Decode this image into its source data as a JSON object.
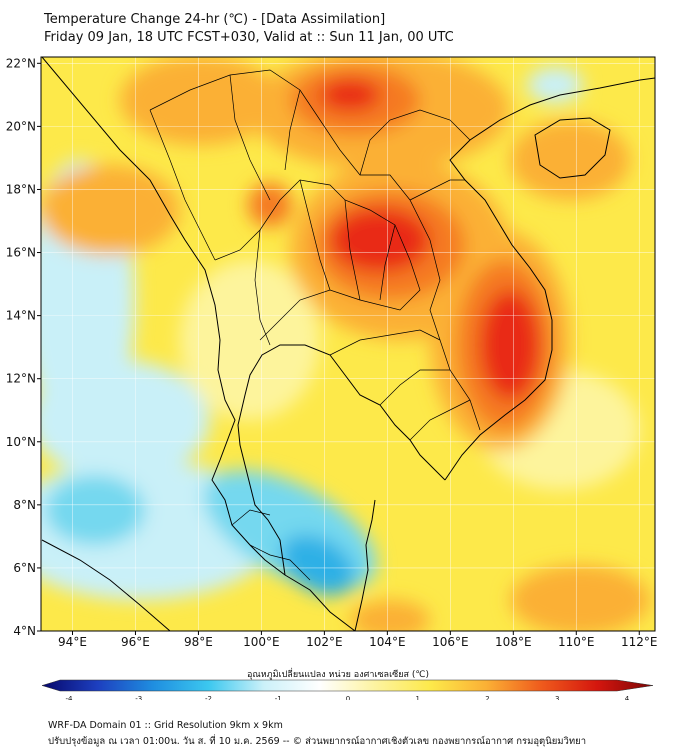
{
  "title": {
    "line1": "Temperature Change 24-hr (℃) - [Data Assimilation]",
    "line2": "Friday 09 Jan, 18 UTC FCST+030, Valid at :: Sun 11 Jan, 00 UTC"
  },
  "map": {
    "lon_range": [
      93,
      112.5
    ],
    "lat_range": [
      4,
      22.2
    ],
    "lon_ticks": [
      {
        "value": 94,
        "label": "94°E"
      },
      {
        "value": 96,
        "label": "96°E"
      },
      {
        "value": 98,
        "label": "98°E"
      },
      {
        "value": 100,
        "label": "100°E"
      },
      {
        "value": 102,
        "label": "102°E"
      },
      {
        "value": 104,
        "label": "104°E"
      },
      {
        "value": 106,
        "label": "106°E"
      },
      {
        "value": 108,
        "label": "108°E"
      },
      {
        "value": 110,
        "label": "110°E"
      },
      {
        "value": 112,
        "label": "112°E"
      }
    ],
    "lat_ticks": [
      {
        "value": 22,
        "label": "22°N"
      },
      {
        "value": 20,
        "label": "20°N"
      },
      {
        "value": 18,
        "label": "18°N"
      },
      {
        "value": 16,
        "label": "16°N"
      },
      {
        "value": 14,
        "label": "14°N"
      },
      {
        "value": 12,
        "label": "12°N"
      },
      {
        "value": 10,
        "label": "10°N"
      },
      {
        "value": 8,
        "label": "8°N"
      },
      {
        "value": 6,
        "label": "6°N"
      },
      {
        "value": 4,
        "label": "4°N"
      }
    ],
    "colors": {
      "background": "#fde94a",
      "orange": "#fbb035",
      "dark_orange": "#f57a20",
      "red": "#e92b13",
      "light_yellow": "#fdf49c",
      "cyan_light": "#c9f0f8",
      "cyan": "#74d8ef",
      "blue": "#2eb0e6",
      "border": "#000000"
    }
  },
  "colorbar": {
    "title": "อุณหภูมิเปลี่ยนแปลง หน่วย องศาเซลเซียส (℃)",
    "min": -4,
    "max": 4,
    "ticks": [
      {
        "value": -4,
        "label": "-4"
      },
      {
        "value": -3,
        "label": "-3"
      },
      {
        "value": -2,
        "label": "-2"
      },
      {
        "value": -1,
        "label": "-1"
      },
      {
        "value": 0,
        "label": "0"
      },
      {
        "value": 1,
        "label": "1"
      },
      {
        "value": 2,
        "label": "2"
      },
      {
        "value": 3,
        "label": "3"
      },
      {
        "value": 4,
        "label": "4"
      }
    ],
    "stops": [
      "#07076b",
      "#1d3fbf",
      "#1f8ee0",
      "#3cc8ef",
      "#ccf1f9",
      "#ffffff",
      "#fdf3a0",
      "#fde94a",
      "#fbb035",
      "#ef5a1c",
      "#d4160e",
      "#7a0505"
    ]
  },
  "footer": {
    "line1": "WRF-DA Domain 01 :: Grid Resolution 9km x 9km",
    "line2": "ปรับปรุงข้อมูล ณ เวลา 01:00น. วัน ส. ที่ 10 ม.ค. 2569 -- © ส่วนพยากรณ์อากาศเชิงตัวเลข กองพยากรณ์อากาศ กรมอุตุนิยมวิทยา"
  }
}
